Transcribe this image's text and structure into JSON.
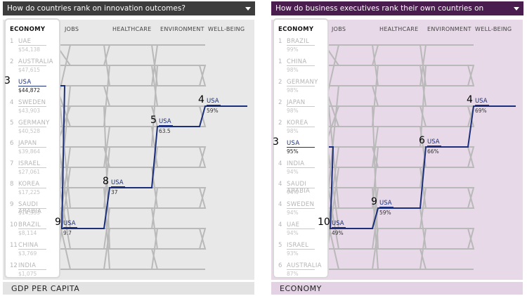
{
  "left": {
    "dropdown": "How do countries rank on innovation outcomes?",
    "columns": [
      "ECONOMY",
      "JOBS",
      "HEALTHCARE",
      "ENVIRONMENT",
      "WELL-BEING"
    ],
    "rows": [
      {
        "rank": "1",
        "name": "UAE",
        "value": "$54,138"
      },
      {
        "rank": "2",
        "name": "AUSTRALIA",
        "value": "$47,615"
      },
      {
        "rank": "3",
        "name": "USA",
        "value": "$44,872",
        "highlight": true
      },
      {
        "rank": "4",
        "name": "SWEDEN",
        "value": "$43,903"
      },
      {
        "rank": "5",
        "name": "GERMANY",
        "value": "$40,528"
      },
      {
        "rank": "6",
        "name": "JAPAN",
        "value": "$39,864"
      },
      {
        "rank": "7",
        "name": "ISRAEL",
        "value": "$27,061"
      },
      {
        "rank": "8",
        "name": "KOREA",
        "value": "$17,225"
      },
      {
        "rank": "9",
        "name": "SAUDI ARABIA",
        "value": "$14,353"
      },
      {
        "rank": "10",
        "name": "BRAZIL",
        "value": "$8,114"
      },
      {
        "rank": "11",
        "name": "CHINA",
        "value": "$3,769"
      },
      {
        "rank": "12",
        "name": "INDIA",
        "value": "$1,075"
      }
    ],
    "usa_marks": [
      {
        "rank": "9",
        "name": "USA",
        "value": "9.7"
      },
      {
        "rank": "8",
        "name": "USA",
        "value": "37"
      },
      {
        "rank": "5",
        "name": "USA",
        "value": "63.5"
      },
      {
        "rank": "4",
        "name": "USA",
        "value": "59%"
      }
    ],
    "footer": "GDP PER CAPITA"
  },
  "right": {
    "dropdown": "How do business executives rank their own countries on innovation outcomes?",
    "columns": [
      "ECONOMY",
      "JOBS",
      "HEALTHCARE",
      "ENVIRONMENT",
      "WELL-BEING"
    ],
    "rows": [
      {
        "rank": "1",
        "name": "BRAZIL",
        "value": "99%"
      },
      {
        "rank": "1",
        "name": "CHINA",
        "value": "98%"
      },
      {
        "rank": "2",
        "name": "GERMANY",
        "value": "98%"
      },
      {
        "rank": "2",
        "name": "JAPAN",
        "value": "98%"
      },
      {
        "rank": "2",
        "name": "KOREA",
        "value": "98%"
      },
      {
        "rank": "3",
        "name": "USA",
        "value": "95%",
        "highlight": true
      },
      {
        "rank": "4",
        "name": "INDIA",
        "value": "94%"
      },
      {
        "rank": "4",
        "name": "SAUDI ARABIA",
        "value": "94%"
      },
      {
        "rank": "4",
        "name": "SWEDEN",
        "value": "94%"
      },
      {
        "rank": "4",
        "name": "UAE",
        "value": "94%"
      },
      {
        "rank": "5",
        "name": "ISRAEL",
        "value": "93%"
      },
      {
        "rank": "6",
        "name": "AUSTRALIA",
        "value": "87%"
      }
    ],
    "usa_marks": [
      {
        "rank": "10",
        "name": "USA",
        "value": "49%"
      },
      {
        "rank": "9",
        "name": "USA",
        "value": "59%"
      },
      {
        "rank": "6",
        "name": "USA",
        "value": "66%"
      },
      {
        "rank": "4",
        "name": "USA",
        "value": "69%"
      }
    ],
    "footer": "ECONOMY"
  },
  "colors": {
    "highlight": "#1b2f7a",
    "lines": "#b9b9b9",
    "left_header": "#3d3d3d",
    "right_header": "#4a1d4f"
  }
}
